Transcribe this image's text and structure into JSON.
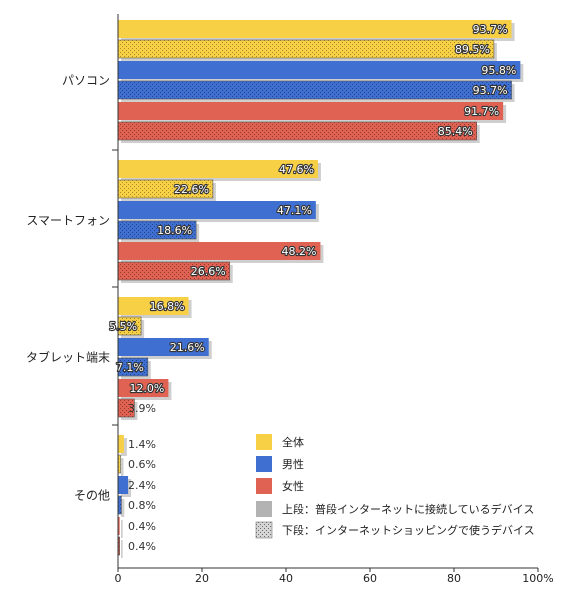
{
  "chart_data": {
    "type": "bar",
    "orientation": "horizontal",
    "categories": [
      "パソコン",
      "スマートフォン",
      "タブレット端末",
      "その他"
    ],
    "groups": [
      {
        "name": "全体",
        "color": "#F7D046",
        "upper": [
          93.7,
          47.6,
          16.8,
          1.4
        ],
        "lower": [
          89.5,
          22.6,
          5.5,
          0.6
        ]
      },
      {
        "name": "男性",
        "color": "#3F6FD1",
        "upper": [
          95.8,
          47.1,
          21.6,
          2.4
        ],
        "lower": [
          93.7,
          18.6,
          7.1,
          0.8
        ]
      },
      {
        "name": "女性",
        "color": "#DF6253",
        "upper": [
          91.7,
          48.2,
          12.0,
          0.4
        ],
        "lower": [
          85.4,
          26.6,
          3.9,
          0.4
        ]
      }
    ],
    "xlim": [
      0,
      100
    ],
    "xticks": [
      "0",
      "20",
      "40",
      "60",
      "80",
      "100%"
    ],
    "value_suffix": "%",
    "legend": {
      "position": "bottom-right",
      "items": [
        "全体",
        "男性",
        "女性"
      ],
      "style_items": [
        "上段：普段インターネットに接続しているデバイス",
        "下段：インターネットショッピングで使うデバイス"
      ],
      "solid_color": "#B3B3B3"
    },
    "grid": false
  }
}
